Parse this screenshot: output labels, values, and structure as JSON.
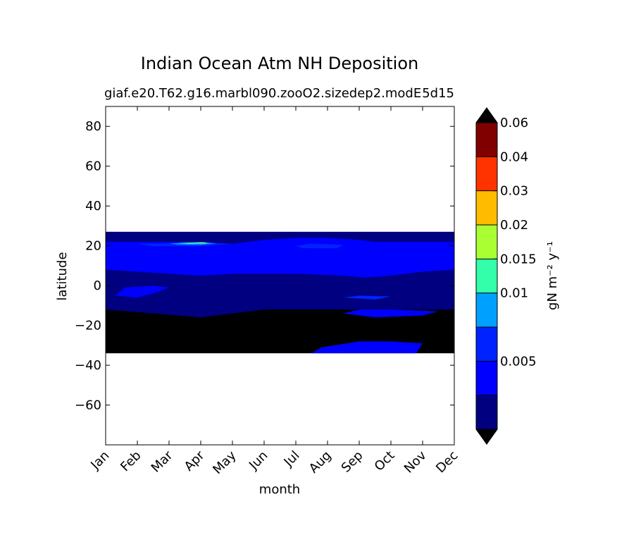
{
  "chart_data": {
    "type": "heatmap",
    "title": "Indian Ocean Atm NH Deposition",
    "subtitle_left": "giaf.e20.T62.g16.marbl090.zooO2.sizedep2.modE",
    "subtitle_right": "5d15",
    "xlabel": "month",
    "ylabel": "latitude",
    "x_tick_labels": [
      "Jan",
      "Feb",
      "Mar",
      "Apr",
      "May",
      "Jun",
      "Jul",
      "Aug",
      "Sep",
      "Oct",
      "Nov",
      "Dec"
    ],
    "y_ticks": [
      80,
      60,
      40,
      20,
      0,
      -20,
      -40,
      -60
    ],
    "y_tick_labels": [
      "80",
      "60",
      "40",
      "20",
      "0",
      "−20",
      "−40",
      "−60"
    ],
    "ylim": [
      -80,
      90
    ],
    "xlim": [
      1,
      12
    ],
    "data_lat_range": [
      -34,
      27
    ],
    "colorbar": {
      "label": "gN m⁻² y⁻¹",
      "extend": "both",
      "levels": [
        0,
        0.0025,
        0.005,
        0.0075,
        0.01,
        0.015,
        0.02,
        0.03,
        0.04,
        0.06,
        0.08
      ],
      "tick_values": [
        0.005,
        0.01,
        0.015,
        0.02,
        0.03,
        0.04,
        0.06
      ],
      "tick_labels": [
        "0.005",
        "0.01",
        "0.015",
        "0.02",
        "0.03",
        "0.04",
        "0.06"
      ],
      "colors": [
        "#000080",
        "#0000ff",
        "#0022ff",
        "#00a0ff",
        "#33ffaa",
        "#aaff33",
        "#ffbb00",
        "#ff3300",
        "#800000"
      ],
      "under_color": "#000000",
      "over_color": "#000000"
    },
    "regions": [
      {
        "level": 1,
        "points": [
          [
            1,
            27
          ],
          [
            12,
            27
          ],
          [
            12,
            -12
          ],
          [
            6,
            -12
          ],
          [
            4,
            -16
          ],
          [
            1,
            -12
          ]
        ]
      },
      {
        "level": 2,
        "points": [
          [
            1,
            22
          ],
          [
            2,
            22
          ],
          [
            4,
            22
          ],
          [
            5,
            21
          ],
          [
            6,
            23
          ],
          [
            7,
            24
          ],
          [
            8,
            24
          ],
          [
            9,
            23
          ],
          [
            9.5,
            22
          ],
          [
            10,
            22
          ],
          [
            12,
            22
          ],
          [
            12,
            8
          ],
          [
            11,
            7
          ],
          [
            10,
            5
          ],
          [
            9.2,
            4
          ],
          [
            8.5,
            5
          ],
          [
            7,
            6
          ],
          [
            5,
            6
          ],
          [
            4,
            5
          ],
          [
            3,
            6
          ],
          [
            1,
            8
          ]
        ]
      },
      {
        "level": 2,
        "points": [
          [
            1.3,
            -5
          ],
          [
            1.6,
            -1
          ],
          [
            2.5,
            0
          ],
          [
            3,
            -1
          ],
          [
            2.5,
            -4
          ],
          [
            2,
            -6
          ]
        ]
      },
      {
        "level": 2,
        "points": [
          [
            8.5,
            -14
          ],
          [
            9,
            -12
          ],
          [
            10,
            -12
          ],
          [
            11.5,
            -13
          ],
          [
            11,
            -15
          ],
          [
            9.5,
            -16
          ]
        ]
      },
      {
        "level": 2,
        "points": [
          [
            7.5,
            -34
          ],
          [
            7.8,
            -31
          ],
          [
            9,
            -28
          ],
          [
            10,
            -28
          ],
          [
            11,
            -29
          ],
          [
            10.8,
            -34
          ]
        ]
      },
      {
        "level": 3,
        "points": [
          [
            2,
            21
          ],
          [
            4,
            21.3
          ],
          [
            5,
            21
          ],
          [
            4,
            19.8
          ],
          [
            2.5,
            19.8
          ]
        ]
      },
      {
        "level": 3,
        "points": [
          [
            7,
            20
          ],
          [
            7.5,
            21
          ],
          [
            8.5,
            20.5
          ],
          [
            8.3,
            18.7
          ],
          [
            7.2,
            18.8
          ]
        ]
      },
      {
        "level": 3,
        "points": [
          [
            8.5,
            -6
          ],
          [
            9,
            -5
          ],
          [
            10,
            -5.5
          ],
          [
            9.5,
            -7
          ]
        ]
      },
      {
        "level": 4,
        "points": [
          [
            3,
            21.2
          ],
          [
            4,
            21.7
          ],
          [
            4.5,
            21.2
          ],
          [
            4,
            20.5
          ],
          [
            3.3,
            20.6
          ]
        ]
      },
      {
        "level": 5,
        "points": [
          [
            3.3,
            21.4
          ],
          [
            4,
            21.8
          ],
          [
            4.3,
            21.3
          ],
          [
            3.6,
            21
          ]
        ]
      },
      {
        "level": 6,
        "points": [
          [
            3.9,
            21.6
          ],
          [
            4.1,
            21.8
          ],
          [
            4.2,
            21.5
          ],
          [
            4,
            21.3
          ]
        ]
      }
    ]
  }
}
